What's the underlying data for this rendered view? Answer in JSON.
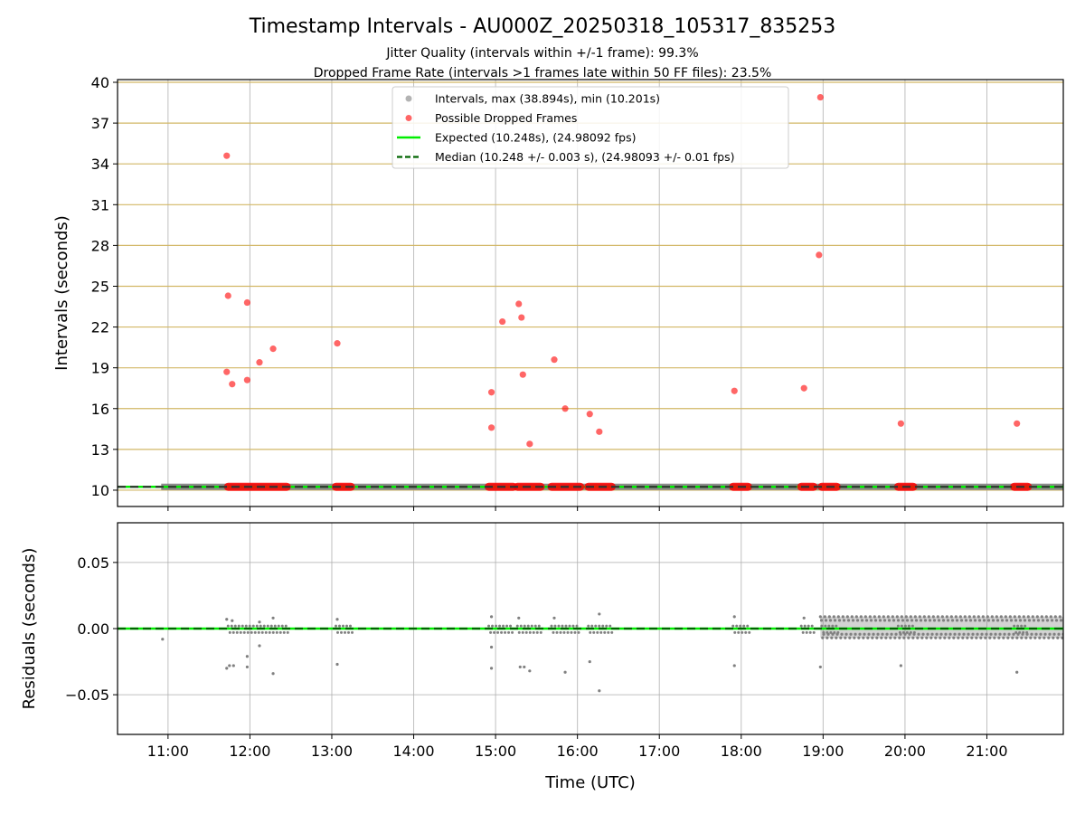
{
  "title": "Timestamp Intervals - AU000Z_20250318_105317_835253",
  "subtitle_1": "Jitter Quality (intervals within +/-1 frame): 99.3%",
  "subtitle_2": "Dropped Frame Rate (intervals >1 frames late within 50 FF files): 23.5%",
  "colors": {
    "intervals": "#808080",
    "dropped": "#ff0000",
    "expected": "#00ee00",
    "median": "#006400",
    "hgrid": "#d2b766",
    "vgrid": "#b0b0b0"
  },
  "chart_data": [
    {
      "type": "scatter",
      "panel": "intervals",
      "xlabel": "",
      "ylabel": "Intervals (seconds)",
      "xlim": [
        "10:23",
        "21:56"
      ],
      "ylim": [
        8.8,
        40.2
      ],
      "xticks": [
        "11:00",
        "12:00",
        "13:00",
        "14:00",
        "15:00",
        "16:00",
        "17:00",
        "18:00",
        "19:00",
        "20:00",
        "21:00"
      ],
      "yticks": [
        10,
        13,
        16,
        19,
        22,
        25,
        28,
        31,
        34,
        37,
        40
      ],
      "legend": {
        "placement": "top-center",
        "entries": [
          "Intervals, max (38.894s), min (10.201s)",
          "Possible Dropped Frames",
          "Expected (10.248s), (24.98092 fps)",
          "Median (10.248 +/- 0.003 s), (24.98093 +/- 0.01 fps)"
        ]
      },
      "expected": 10.248,
      "median": 10.248,
      "interval_band": {
        "start": "10:55",
        "end": "21:56",
        "value": 10.248
      },
      "series": [
        {
          "name": "Possible Dropped Frames",
          "points": [
            {
              "x": "11:43",
              "y": 34.6
            },
            {
              "x": "11:44",
              "y": 24.3
            },
            {
              "x": "11:43",
              "y": 18.7
            },
            {
              "x": "11:47",
              "y": 17.8
            },
            {
              "x": "11:58",
              "y": 23.8
            },
            {
              "x": "11:58",
              "y": 18.1
            },
            {
              "x": "12:07",
              "y": 19.4
            },
            {
              "x": "12:17",
              "y": 20.4
            },
            {
              "x": "13:04",
              "y": 20.8
            },
            {
              "x": "14:57",
              "y": 17.2
            },
            {
              "x": "14:57",
              "y": 14.6
            },
            {
              "x": "15:05",
              "y": 22.4
            },
            {
              "x": "15:17",
              "y": 23.7
            },
            {
              "x": "15:19",
              "y": 22.7
            },
            {
              "x": "15:20",
              "y": 18.5
            },
            {
              "x": "15:25",
              "y": 13.4
            },
            {
              "x": "15:43",
              "y": 19.6
            },
            {
              "x": "15:51",
              "y": 16.0
            },
            {
              "x": "16:09",
              "y": 15.6
            },
            {
              "x": "16:16",
              "y": 14.3
            },
            {
              "x": "17:55",
              "y": 17.3
            },
            {
              "x": "18:46",
              "y": 17.5
            },
            {
              "x": "18:58",
              "y": 38.9
            },
            {
              "x": "18:57",
              "y": 27.3
            },
            {
              "x": "19:57",
              "y": 14.9
            },
            {
              "x": "21:22",
              "y": 14.9
            }
          ],
          "baseline_clusters": [
            {
              "start": "11:44",
              "end": "12:27",
              "y": 10.25
            },
            {
              "start": "13:03",
              "end": "13:14",
              "y": 10.25
            },
            {
              "start": "14:55",
              "end": "15:13",
              "y": 10.25
            },
            {
              "start": "15:16",
              "end": "15:33",
              "y": 10.25
            },
            {
              "start": "15:41",
              "end": "16:02",
              "y": 10.25
            },
            {
              "start": "16:08",
              "end": "16:25",
              "y": 10.25
            },
            {
              "start": "17:54",
              "end": "18:05",
              "y": 10.25
            },
            {
              "start": "18:44",
              "end": "18:53",
              "y": 10.25
            },
            {
              "start": "18:59",
              "end": "19:10",
              "y": 10.25
            },
            {
              "start": "19:55",
              "end": "20:06",
              "y": 10.25
            },
            {
              "start": "21:20",
              "end": "21:30",
              "y": 10.25
            }
          ]
        }
      ]
    },
    {
      "type": "scatter",
      "panel": "residuals",
      "xlabel": "Time (UTC)",
      "ylabel": "Residuals (seconds)",
      "xlim": [
        "10:23",
        "21:56"
      ],
      "ylim": [
        -0.08,
        0.08
      ],
      "xticks": [
        "11:00",
        "12:00",
        "13:00",
        "14:00",
        "15:00",
        "16:00",
        "17:00",
        "18:00",
        "19:00",
        "20:00",
        "21:00"
      ],
      "yticks": [
        0.05,
        0.0,
        -0.05
      ],
      "ytick_labels": [
        "0.05",
        "0.00",
        "−0.05"
      ],
      "series": [
        {
          "name": "Residuals",
          "points": [
            {
              "x": "10:56",
              "y": -0.008
            },
            {
              "x": "11:43",
              "y": -0.03
            },
            {
              "x": "11:45",
              "y": -0.028
            },
            {
              "x": "11:48",
              "y": -0.028
            },
            {
              "x": "11:58",
              "y": -0.029
            },
            {
              "x": "11:58",
              "y": -0.021
            },
            {
              "x": "12:07",
              "y": -0.013
            },
            {
              "x": "12:17",
              "y": -0.034
            },
            {
              "x": "13:04",
              "y": -0.027
            },
            {
              "x": "14:57",
              "y": -0.03
            },
            {
              "x": "14:57",
              "y": -0.014
            },
            {
              "x": "15:18",
              "y": -0.029
            },
            {
              "x": "15:21",
              "y": -0.029
            },
            {
              "x": "15:25",
              "y": -0.032
            },
            {
              "x": "15:51",
              "y": -0.033
            },
            {
              "x": "16:09",
              "y": -0.025
            },
            {
              "x": "16:16",
              "y": -0.047
            },
            {
              "x": "17:55",
              "y": -0.028
            },
            {
              "x": "18:58",
              "y": -0.029
            },
            {
              "x": "19:57",
              "y": -0.028
            },
            {
              "x": "21:22",
              "y": -0.033
            },
            {
              "x": "11:43",
              "y": 0.007
            },
            {
              "x": "11:47",
              "y": 0.006
            },
            {
              "x": "12:07",
              "y": 0.005
            },
            {
              "x": "12:17",
              "y": 0.008
            },
            {
              "x": "13:04",
              "y": 0.007
            },
            {
              "x": "14:57",
              "y": 0.009
            },
            {
              "x": "15:17",
              "y": 0.008
            },
            {
              "x": "15:43",
              "y": 0.008
            },
            {
              "x": "16:16",
              "y": 0.011
            },
            {
              "x": "17:55",
              "y": 0.009
            },
            {
              "x": "18:46",
              "y": 0.008
            }
          ],
          "dense_band": {
            "start": "18:58",
            "end": "21:56",
            "ymin": -0.007,
            "ymax": 0.009
          }
        }
      ]
    }
  ]
}
